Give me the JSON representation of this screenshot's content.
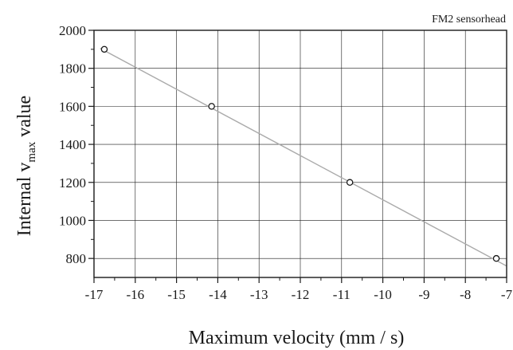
{
  "chart_data": {
    "type": "scatter",
    "annotation": "FM2 sensorhead",
    "xlabel": "Maximum velocity (mm / s)",
    "ylabel": {
      "prefix": "Internal v",
      "subscript": "max",
      "suffix": " value"
    },
    "xlim": [
      -17,
      -7
    ],
    "ylim": [
      700,
      2000
    ],
    "x_ticks": [
      -17,
      -16,
      -15,
      -14,
      -13,
      -12,
      -11,
      -10,
      -9,
      -8,
      -7
    ],
    "y_ticks": [
      800,
      1000,
      1200,
      1400,
      1600,
      1800,
      2000
    ],
    "x_tick_labels": [
      "-17",
      "-16",
      "-15",
      "-14",
      "-13",
      "-12",
      "-11",
      "-10",
      "-9",
      "-8",
      "-7"
    ],
    "y_tick_labels": [
      "800",
      "1000",
      "1200",
      "1400",
      "1600",
      "1800",
      "2000"
    ],
    "grid": true,
    "series": [
      {
        "marker": "open-circle",
        "points": [
          {
            "x": -16.75,
            "y": 1900
          },
          {
            "x": -14.15,
            "y": 1600
          },
          {
            "x": -10.8,
            "y": 1200
          },
          {
            "x": -7.25,
            "y": 800
          }
        ]
      }
    ],
    "fit_line": {
      "style": "linear",
      "color": "#aaaaaa",
      "from": {
        "x": -16.85,
        "y": 1905
      },
      "to": {
        "x": -7.0,
        "y": 760
      }
    },
    "colors": {
      "axis": "#1a1a1a",
      "grid": "#1a1a1a",
      "marker_edge": "#1a1a1a",
      "marker_fill": "#ffffff",
      "fit_line": "#aaaaaa"
    }
  }
}
